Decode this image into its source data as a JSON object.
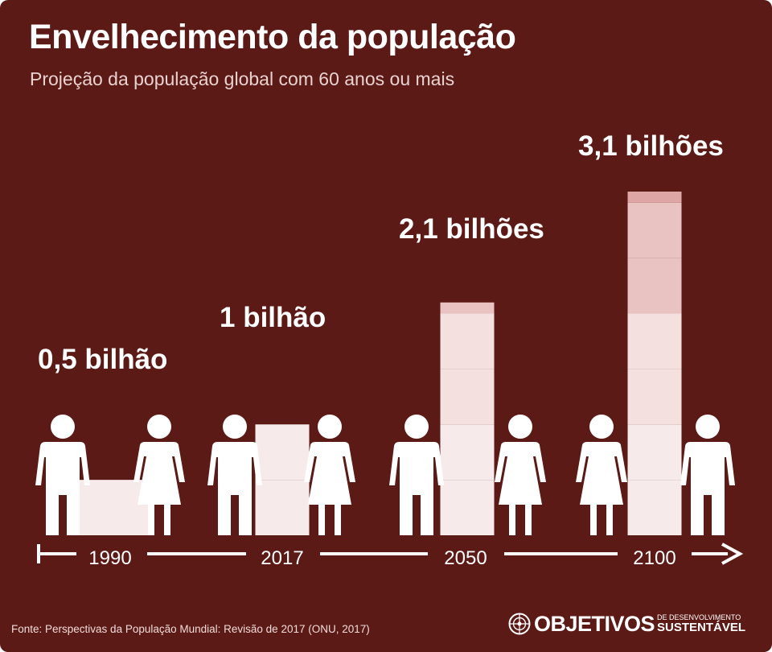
{
  "header": {
    "title": "Envelhecimento da população",
    "subtitle": "Projeção da população global com 60 anos ou mais"
  },
  "chart_data": {
    "type": "bar",
    "categories": [
      "1990",
      "2017",
      "2050",
      "2100"
    ],
    "values": [
      0.5,
      1,
      2.1,
      3.1
    ],
    "value_labels": [
      "0,5 bilhão",
      "1 bilhão",
      "2,1 bilhões",
      "3,1 bilhões"
    ],
    "title": "Envelhecimento da população",
    "subtitle": "Projeção da população global com 60 anos ou mais",
    "xlabel": "",
    "ylabel": "",
    "ylim": [
      0,
      3.1
    ],
    "grid": false,
    "segment_unit": 0.5,
    "colors": {
      "background": "#5b1a16",
      "segment_shades": [
        "#f6ebea",
        "#f3e0df",
        "#e8c3c2",
        "#dea6a5"
      ],
      "people": "#ffffff",
      "timeline": "#ffffff"
    }
  },
  "footer": {
    "source": "Fonte: Perspectivas da População Mundial: Revisão de 2017 (ONU, 2017)",
    "brand_main": "OBJETIVOS",
    "brand_top": "DE DESENVOLVIMENTO",
    "brand_bottom": "SUSTENTÁVEL",
    "brand_icon": "un-emblem-icon"
  }
}
